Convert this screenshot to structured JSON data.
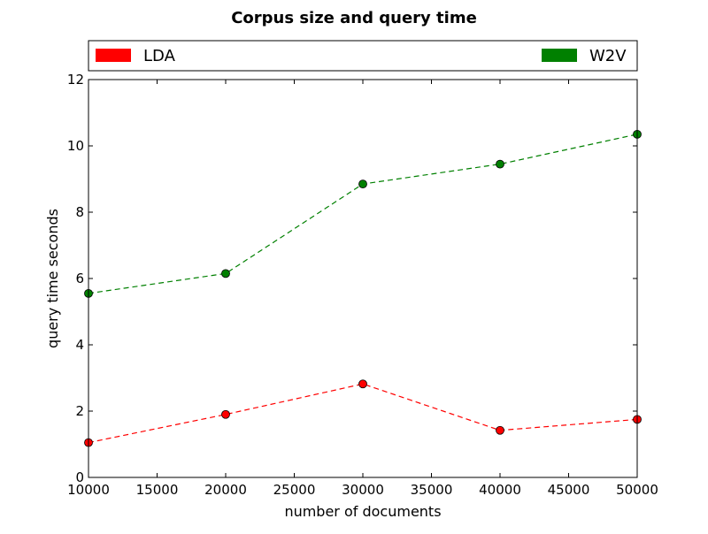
{
  "chart_data": {
    "type": "line",
    "title": "Corpus size and query time",
    "xlabel": "number of documents",
    "ylabel": "query time seconds",
    "xlim": [
      10000,
      50000
    ],
    "ylim": [
      0,
      12
    ],
    "xticks": [
      10000,
      15000,
      20000,
      25000,
      30000,
      35000,
      40000,
      45000,
      50000
    ],
    "yticks": [
      0,
      2,
      4,
      6,
      8,
      10,
      12
    ],
    "grid": false,
    "legend_position": "top, outside plot",
    "x": [
      10000,
      20000,
      30000,
      40000,
      50000
    ],
    "series": [
      {
        "name": "LDA",
        "color": "#ff0000",
        "line_style": "dashed",
        "marker": "circle",
        "values": [
          1.05,
          1.9,
          2.82,
          1.42,
          1.75
        ]
      },
      {
        "name": "W2V",
        "color": "#008000",
        "line_style": "dashed",
        "marker": "circle",
        "values": [
          5.55,
          6.15,
          8.85,
          9.45,
          10.35
        ]
      }
    ]
  }
}
